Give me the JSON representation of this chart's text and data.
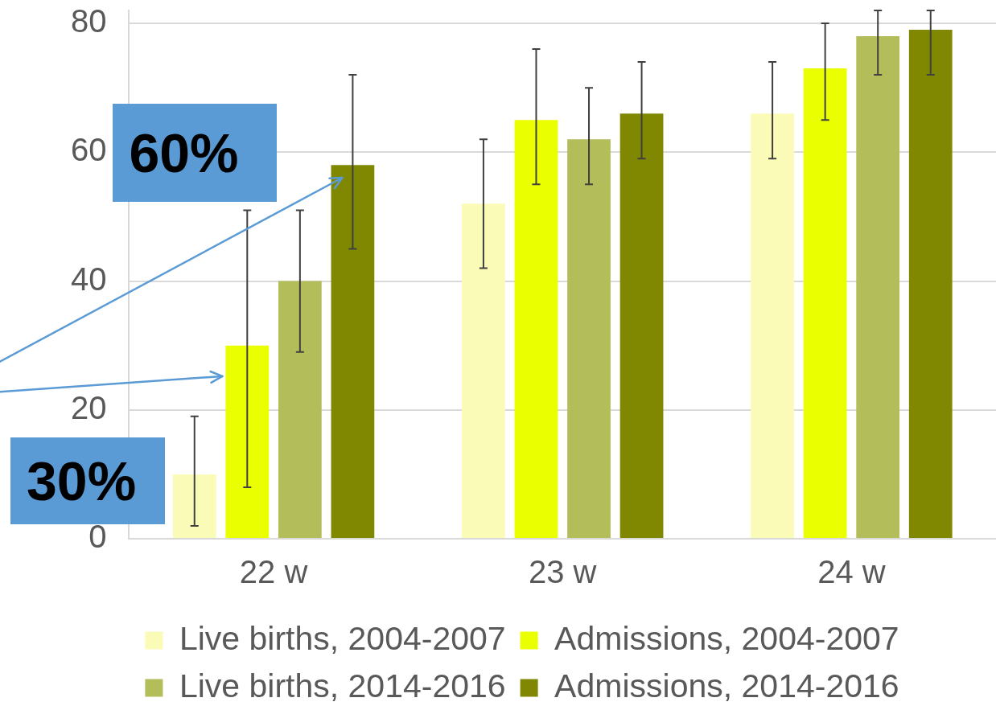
{
  "chart_data": {
    "type": "bar",
    "categories": [
      "22 w",
      "23 w",
      "24 w"
    ],
    "series": [
      {
        "name": "Live births, 2004-2007",
        "color": "#fbfbb8",
        "values": [
          10,
          52,
          66
        ],
        "errors": [
          [
            2,
            19
          ],
          [
            42,
            62
          ],
          [
            59,
            74
          ]
        ]
      },
      {
        "name": "Admissions, 2004-2007",
        "color": "#eaff00",
        "values": [
          30,
          65,
          73
        ],
        "errors": [
          [
            8,
            51
          ],
          [
            55,
            76
          ],
          [
            65,
            80
          ]
        ]
      },
      {
        "name": "Live births, 2014-2016",
        "color": "#b3bd5a",
        "values": [
          40,
          62,
          78
        ],
        "errors": [
          [
            29,
            51
          ],
          [
            55,
            70
          ],
          [
            72,
            82
          ]
        ]
      },
      {
        "name": "Admissions, 2014-2016",
        "color": "#7f8800",
        "values": [
          58,
          66,
          79
        ],
        "errors": [
          [
            45,
            72
          ],
          [
            59,
            74
          ],
          [
            72,
            82
          ]
        ]
      }
    ],
    "ylim": [
      0,
      82
    ],
    "yticks": [
      0,
      20,
      40,
      60,
      80
    ],
    "grid": "y",
    "legend": "bottom",
    "annotations": [
      "60%",
      "30%"
    ]
  }
}
